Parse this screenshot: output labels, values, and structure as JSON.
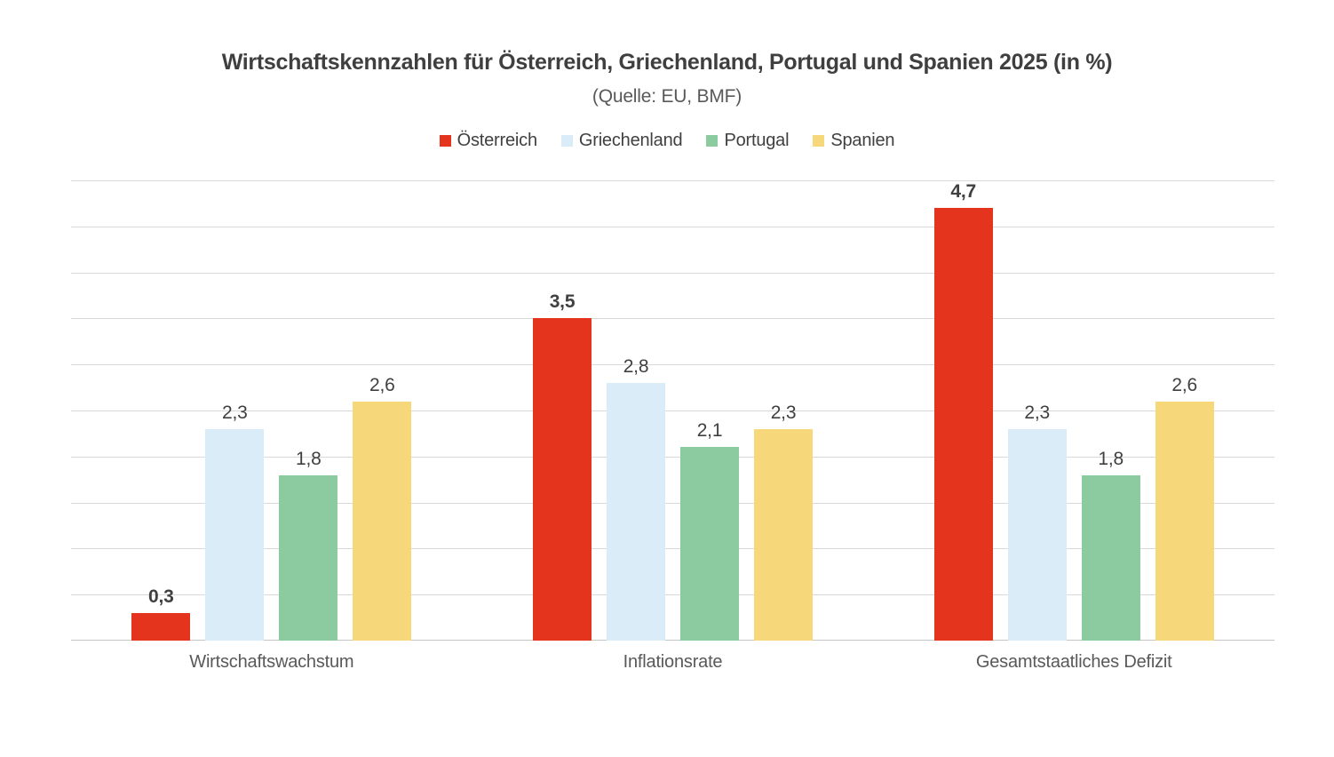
{
  "header": {
    "title": "Wirtschaftskennzahlen für Österreich, Griechenland, Portugal und Spanien 2025 (in %)",
    "subtitle": "(Quelle: EU, BMF)"
  },
  "chart_data": {
    "type": "bar",
    "title": "Wirtschaftskennzahlen für Österreich, Griechenland, Portugal und Spanien 2025 (in %)",
    "subtitle": "(Quelle: EU, BMF)",
    "categories": [
      "Wirtschaftswachstum",
      "Inflationsrate",
      "Gesamtstaatliches Defizit"
    ],
    "series": [
      {
        "name": "Österreich",
        "color": "#E4341E",
        "values": [
          0.3,
          3.5,
          4.7
        ],
        "labels_bold": true
      },
      {
        "name": "Griechenland",
        "color": "#D9ECF8",
        "values": [
          2.3,
          2.8,
          2.3
        ],
        "labels_bold": false
      },
      {
        "name": "Portugal",
        "color": "#8CCAA0",
        "values": [
          1.8,
          2.1,
          1.8
        ],
        "labels_bold": false
      },
      {
        "name": "Spanien",
        "color": "#F6D87A",
        "values": [
          2.6,
          2.3,
          2.6
        ],
        "labels_bold": false
      }
    ],
    "value_labels_shown": true,
    "value_label_decimal_separator": ",",
    "ylim": [
      0,
      5
    ],
    "gridline_step": 0.5,
    "grid": true,
    "legend_position": "top",
    "y_axis_tick_labels_shown": false
  },
  "styles": {
    "title_color": "#3F3F3F",
    "subtitle_color": "#595959",
    "legend_text_color": "#404040",
    "value_label_color": "#404040",
    "category_label_color": "#595959",
    "gridline_color": "#D9D9D9",
    "baseline_color": "#C6C6C6",
    "background": "#FFFFFF"
  }
}
